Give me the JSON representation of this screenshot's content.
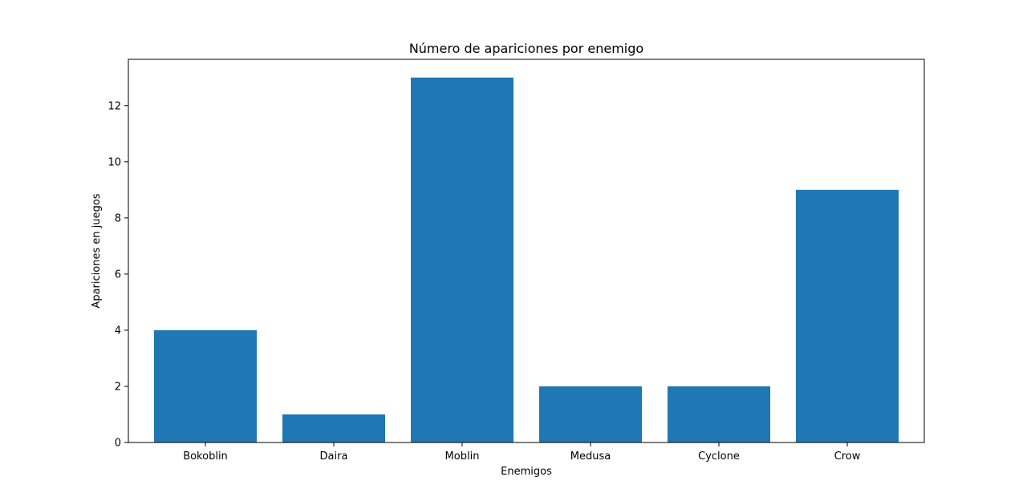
{
  "chart_data": {
    "type": "bar",
    "title": "Número de apariciones por enemigo",
    "xlabel": "Enemigos",
    "ylabel": "Apariciones en juegos",
    "categories": [
      "Bokoblin",
      "Daira",
      "Moblin",
      "Medusa",
      "Cyclone",
      "Crow"
    ],
    "values": [
      4,
      1,
      13,
      2,
      2,
      9
    ],
    "ylim": [
      0,
      13.65
    ],
    "yticks": [
      "0",
      "2",
      "4",
      "6",
      "8",
      "10",
      "12"
    ],
    "grid": false,
    "legend": "none",
    "bar_color": "#1f77b4"
  }
}
